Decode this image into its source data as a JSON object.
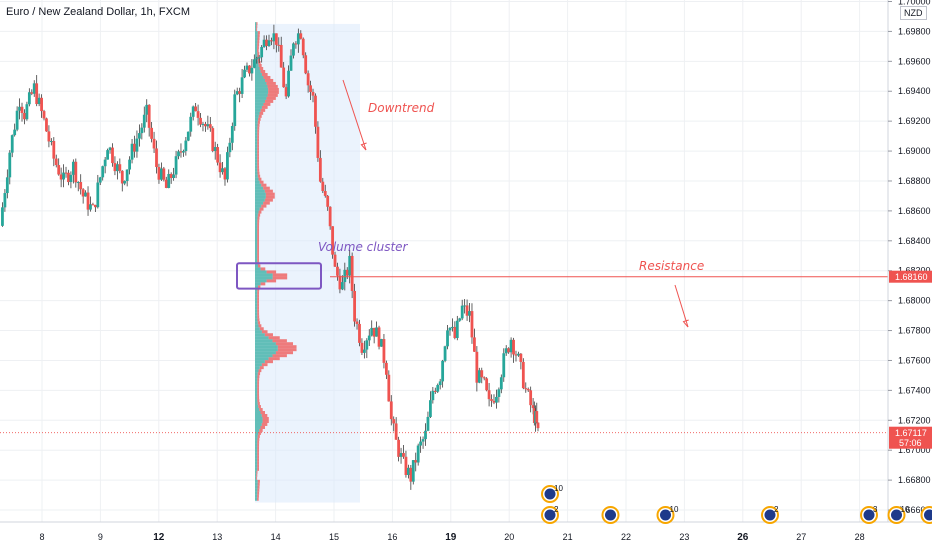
{
  "header": {
    "title": "Euro / New Zealand Dollar, 1h, FXCM",
    "currency": "NZD"
  },
  "colors": {
    "up": "#26a69a",
    "down": "#ef5350",
    "grid": "#eef0f3",
    "axis_text": "#131722",
    "resistance": "#ef5350",
    "cluster_box": "#7e57c2",
    "shade": "#dbeafb"
  },
  "chart_data": {
    "type": "candlestick",
    "symbol": "EURNZD",
    "timeframe": "1h",
    "source": "FXCM",
    "y_axis": {
      "ticks": [
        "1.70000",
        "1.69800",
        "1.69600",
        "1.69400",
        "1.69200",
        "1.69000",
        "1.68800",
        "1.68600",
        "1.68400",
        "1.68200",
        "1.68000",
        "1.67800",
        "1.67600",
        "1.67400",
        "1.67200",
        "1.67000",
        "1.66800",
        "1.66600"
      ],
      "range": [
        1.6652,
        1.7001
      ]
    },
    "x_axis": {
      "ticks": [
        "8",
        "9",
        "12",
        "13",
        "14",
        "15",
        "16",
        "19",
        "20",
        "21",
        "22",
        "23",
        "26",
        "27",
        "28"
      ],
      "bold_ticks": [
        "12",
        "19",
        "26"
      ],
      "day_range": [
        7.6,
        28.2
      ]
    },
    "price_labels": [
      {
        "value": 1.6816,
        "text": "1.68160",
        "color": "#ef5350"
      },
      {
        "value": 1.67117,
        "text": "1.67117",
        "sub": "57:06",
        "color": "#ef5350"
      }
    ],
    "current_price": 1.67117,
    "annotations": [
      {
        "text": "Downtrend",
        "color": "#ef5350",
        "arrow": [
          [
            13.6,
            1.6965
          ],
          [
            14.1,
            1.6905
          ]
        ]
      },
      {
        "text": "Volume cluster",
        "color": "#7e57c2"
      },
      {
        "text": "Resistance",
        "color": "#ef5350",
        "arrow": [
          [
            22.75,
            1.681
          ],
          [
            22.95,
            1.6785
          ]
        ]
      }
    ],
    "resistance_level": {
      "value": 1.6816,
      "from_day": 14.8,
      "color": "#ef5350"
    },
    "volume_profile": {
      "day_range": [
        13.55,
        15.35
      ],
      "price_range": [
        1.6665,
        1.6985
      ],
      "cluster": {
        "price_range": [
          1.6808,
          1.6825
        ]
      }
    },
    "price_path": [
      [
        7.6,
        1.685
      ],
      [
        7.8,
        1.69
      ],
      [
        8.0,
        1.6935
      ],
      [
        8.1,
        1.6925
      ],
      [
        8.3,
        1.6942
      ],
      [
        8.5,
        1.692
      ],
      [
        8.7,
        1.6895
      ],
      [
        8.9,
        1.688
      ],
      [
        9.1,
        1.689
      ],
      [
        9.3,
        1.687
      ],
      [
        9.5,
        1.686
      ],
      [
        9.8,
        1.6905
      ],
      [
        10.1,
        1.688
      ],
      [
        10.3,
        1.69
      ],
      [
        10.6,
        1.6925
      ],
      [
        10.8,
        1.689
      ],
      [
        11.0,
        1.6875
      ],
      [
        11.3,
        1.69
      ],
      [
        11.6,
        1.693
      ],
      [
        11.9,
        1.691
      ],
      [
        12.2,
        1.688
      ],
      [
        12.4,
        1.6935
      ],
      [
        12.6,
        1.695
      ],
      [
        12.9,
        1.6965
      ],
      [
        13.1,
        1.698
      ],
      [
        13.25,
        1.6975
      ],
      [
        13.45,
        1.6935
      ],
      [
        13.6,
        1.6975
      ],
      [
        13.75,
        1.698
      ],
      [
        13.9,
        1.6945
      ],
      [
        14.0,
        1.6935
      ],
      [
        14.15,
        1.688
      ],
      [
        14.3,
        1.686
      ],
      [
        14.45,
        1.682
      ],
      [
        14.6,
        1.681
      ],
      [
        14.75,
        1.6825
      ],
      [
        14.85,
        1.679
      ],
      [
        15.0,
        1.677
      ],
      [
        15.2,
        1.6783
      ],
      [
        15.35,
        1.6775
      ],
      [
        15.5,
        1.6755
      ],
      [
        15.6,
        1.672
      ],
      [
        15.7,
        1.6705
      ],
      [
        15.85,
        1.669
      ],
      [
        16.0,
        1.6682
      ],
      [
        16.15,
        1.67
      ],
      [
        16.3,
        1.671
      ],
      [
        16.45,
        1.674
      ],
      [
        16.6,
        1.675
      ],
      [
        16.75,
        1.6785
      ],
      [
        16.9,
        1.6775
      ],
      [
        17.05,
        1.6795
      ],
      [
        17.2,
        1.679
      ],
      [
        17.35,
        1.675
      ],
      [
        17.5,
        1.6743
      ],
      [
        17.6,
        1.673
      ],
      [
        17.75,
        1.674
      ],
      [
        17.9,
        1.676
      ],
      [
        18.05,
        1.6775
      ],
      [
        18.2,
        1.676
      ],
      [
        18.35,
        1.674
      ],
      [
        18.5,
        1.6725
      ],
      [
        18.55,
        1.6721
      ],
      [
        18.6,
        1.67117
      ]
    ],
    "events": [
      {
        "day": 20.55,
        "row": 1,
        "label": "10"
      },
      {
        "day": 20.55,
        "row": 0,
        "label": "2"
      },
      {
        "day": 21.1,
        "row": 0,
        "label": ""
      },
      {
        "day": 21.6,
        "row": 0,
        "label": "10"
      },
      {
        "day": 22.55,
        "row": 0,
        "label": "2"
      },
      {
        "day": 23.45,
        "row": 0,
        "label": "3"
      },
      {
        "day": 23.7,
        "row": 0,
        "label": "10"
      },
      {
        "day": 24.0,
        "row": 0,
        "label": "20"
      }
    ],
    "grid": true
  }
}
